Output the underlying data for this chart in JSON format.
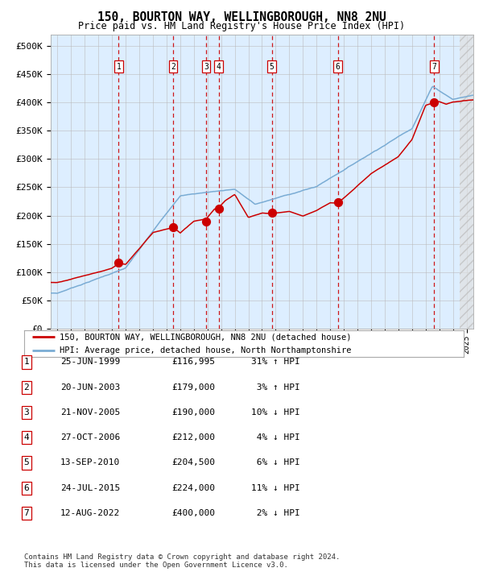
{
  "title": "150, BOURTON WAY, WELLINGBOROUGH, NN8 2NU",
  "subtitle": "Price paid vs. HM Land Registry's House Price Index (HPI)",
  "ylabel_ticks": [
    "£0",
    "£50K",
    "£100K",
    "£150K",
    "£200K",
    "£250K",
    "£300K",
    "£350K",
    "£400K",
    "£450K",
    "£500K"
  ],
  "ytick_values": [
    0,
    50000,
    100000,
    150000,
    200000,
    250000,
    300000,
    350000,
    400000,
    450000,
    500000
  ],
  "ylim": [
    0,
    520000
  ],
  "xlim_start": 1994.5,
  "xlim_end": 2025.5,
  "sale_dates": [
    1999.48,
    2003.47,
    2005.9,
    2006.82,
    2010.71,
    2015.56,
    2022.62
  ],
  "sale_prices": [
    116995,
    179000,
    190000,
    212000,
    204500,
    224000,
    400000
  ],
  "sale_labels": [
    "1",
    "2",
    "3",
    "4",
    "5",
    "6",
    "7"
  ],
  "legend_line1": "150, BOURTON WAY, WELLINGBOROUGH, NN8 2NU (detached house)",
  "legend_line2": "HPI: Average price, detached house, North Northamptonshire",
  "table_rows": [
    [
      "1",
      "25-JUN-1999",
      "£116,995",
      "31% ↑ HPI"
    ],
    [
      "2",
      "20-JUN-2003",
      "£179,000",
      " 3% ↑ HPI"
    ],
    [
      "3",
      "21-NOV-2005",
      "£190,000",
      "10% ↓ HPI"
    ],
    [
      "4",
      "27-OCT-2006",
      "£212,000",
      " 4% ↓ HPI"
    ],
    [
      "5",
      "13-SEP-2010",
      "£204,500",
      " 6% ↓ HPI"
    ],
    [
      "6",
      "24-JUL-2015",
      "£224,000",
      "11% ↓ HPI"
    ],
    [
      "7",
      "12-AUG-2022",
      "£400,000",
      " 2% ↓ HPI"
    ]
  ],
  "footer": "Contains HM Land Registry data © Crown copyright and database right 2024.\nThis data is licensed under the Open Government Licence v3.0.",
  "hpi_color": "#7aacd4",
  "price_color": "#cc0000",
  "bg_color": "#ddeeff",
  "grid_color": "#bbbbbb",
  "dashed_line_color": "#cc0000",
  "hatch_color": "#cccccc"
}
